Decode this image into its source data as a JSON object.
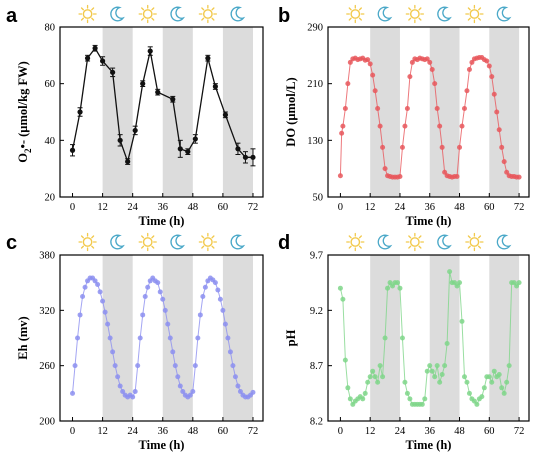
{
  "chart_data": [
    {
      "type": "line",
      "panel_label": "a",
      "xlabel": "Time (h)",
      "ylabel": "O2•- (µmol/kg FW)",
      "ylabel_main": "O",
      "ylabel_sub": "2",
      "ylabel_rest": "•- (µmol/kg FW)",
      "xlim": [
        -5,
        76
      ],
      "ylim": [
        20,
        80
      ],
      "xticks": [
        "0",
        "12",
        "24",
        "36",
        "48",
        "60",
        "72"
      ],
      "yticks": [
        "20",
        "40",
        "60",
        "80"
      ],
      "error_bars": true,
      "color": "#111111",
      "series": [
        {
          "x": [
            0,
            3,
            6,
            9,
            12,
            16,
            19,
            22,
            25,
            28,
            31,
            34,
            40,
            43,
            46,
            49,
            54,
            57,
            61,
            66,
            69,
            72
          ],
          "y": [
            36.5,
            50,
            69,
            72.5,
            68,
            64,
            40,
            32.5,
            43.5,
            60,
            71.5,
            57,
            54.5,
            37,
            36,
            40.5,
            69,
            59,
            49,
            37,
            34,
            34
          ],
          "err": [
            2,
            1.5,
            1,
            1,
            1.5,
            1.5,
            2,
            1,
            1.5,
            1,
            1.5,
            1,
            1,
            3,
            1,
            1.5,
            1,
            1,
            1,
            2,
            2,
            3
          ]
        }
      ]
    },
    {
      "type": "line",
      "panel_label": "b",
      "xlabel": "Time (h)",
      "ylabel": "DO (µmol/L)",
      "xlim": [
        -5,
        76
      ],
      "ylim": [
        50,
        290
      ],
      "xticks": [
        "0",
        "12",
        "24",
        "36",
        "48",
        "60",
        "72"
      ],
      "yticks": [
        "50",
        "130",
        "210",
        "290"
      ],
      "color": "#e8575c",
      "series": [
        {
          "x": [
            0,
            0.5,
            1,
            2,
            3,
            4,
            5,
            6,
            7,
            8,
            9,
            10,
            11,
            12,
            13,
            14,
            15,
            16,
            17,
            18,
            19,
            20,
            21,
            22,
            23,
            24,
            25,
            26,
            27,
            28,
            29,
            30,
            31,
            32,
            33,
            34,
            35,
            36,
            37,
            38,
            39,
            40,
            41,
            42,
            43,
            44,
            45,
            46,
            47,
            48,
            49,
            50,
            51,
            52,
            53,
            54,
            55,
            56,
            57,
            58,
            59,
            60,
            61,
            62,
            63,
            64,
            65,
            66,
            67,
            68,
            69,
            70,
            71,
            72
          ],
          "y": [
            80,
            140,
            150,
            175,
            210,
            240,
            245,
            246,
            244,
            245,
            246,
            243,
            244,
            238,
            222,
            200,
            175,
            150,
            120,
            90,
            80,
            79,
            78,
            78,
            78,
            79,
            120,
            150,
            175,
            220,
            240,
            245,
            244,
            246,
            245,
            244,
            245,
            240,
            230,
            210,
            175,
            150,
            120,
            85,
            80,
            79,
            78,
            79,
            79,
            120,
            150,
            175,
            200,
            230,
            240,
            245,
            246,
            247,
            247,
            244,
            242,
            235,
            220,
            195,
            170,
            145,
            120,
            100,
            85,
            80,
            79,
            79,
            78,
            78
          ]
        }
      ]
    },
    {
      "type": "line",
      "panel_label": "c",
      "xlabel": "Time (h)",
      "ylabel": "Eh (mv)",
      "xlim": [
        -5,
        76
      ],
      "ylim": [
        200,
        380
      ],
      "xticks": [
        "0",
        "12",
        "24",
        "36",
        "48",
        "60",
        "72"
      ],
      "yticks": [
        "200",
        "260",
        "320",
        "380"
      ],
      "color": "#8c8ff0",
      "series": [
        {
          "x": [
            0,
            1,
            2,
            3,
            4,
            5,
            6,
            7,
            8,
            9,
            10,
            11,
            12,
            13,
            14,
            15,
            16,
            17,
            18,
            19,
            20,
            21,
            22,
            23,
            24,
            25,
            26,
            27,
            28,
            29,
            30,
            31,
            32,
            33,
            34,
            35,
            36,
            37,
            38,
            39,
            40,
            41,
            42,
            43,
            44,
            45,
            46,
            47,
            48,
            49,
            50,
            51,
            52,
            53,
            54,
            55,
            56,
            57,
            58,
            59,
            60,
            61,
            62,
            63,
            64,
            65,
            66,
            67,
            68,
            69,
            70,
            71,
            72
          ],
          "y": [
            230,
            260,
            290,
            315,
            335,
            345,
            352,
            355,
            355,
            352,
            348,
            340,
            330,
            318,
            305,
            290,
            275,
            260,
            248,
            238,
            232,
            228,
            226,
            228,
            226,
            232,
            260,
            290,
            315,
            335,
            345,
            352,
            355,
            352,
            350,
            340,
            332,
            320,
            305,
            290,
            275,
            260,
            248,
            238,
            232,
            228,
            226,
            228,
            232,
            260,
            290,
            315,
            335,
            345,
            352,
            355,
            353,
            350,
            342,
            332,
            320,
            305,
            290,
            275,
            260,
            248,
            238,
            232,
            228,
            226,
            226,
            228,
            231
          ]
        }
      ]
    },
    {
      "type": "line",
      "panel_label": "d",
      "xlabel": "Time (h)",
      "ylabel": "pH",
      "xlim": [
        -5,
        76
      ],
      "ylim": [
        8.2,
        9.7
      ],
      "xticks": [
        "0",
        "12",
        "24",
        "36",
        "48",
        "60",
        "72"
      ],
      "yticks": [
        "8.2",
        "8.7",
        "9.2",
        "9.7"
      ],
      "color": "#7fd68a",
      "series": [
        {
          "x": [
            0,
            1,
            2,
            3,
            4,
            5,
            6,
            7,
            8,
            9,
            10,
            11,
            12,
            13,
            14,
            15,
            16,
            17,
            18,
            19,
            20,
            21,
            22,
            23,
            24,
            25,
            26,
            27,
            28,
            29,
            30,
            31,
            32,
            33,
            34,
            35,
            36,
            37,
            38,
            39,
            40,
            41,
            42,
            43,
            44,
            45,
            46,
            47,
            48,
            49,
            50,
            51,
            52,
            53,
            54,
            55,
            56,
            57,
            58,
            59,
            60,
            61,
            62,
            63,
            64,
            65,
            66,
            67,
            68,
            69,
            70,
            71,
            72
          ],
          "y": [
            9.4,
            9.3,
            8.75,
            8.5,
            8.4,
            8.35,
            8.38,
            8.4,
            8.42,
            8.4,
            8.45,
            8.55,
            8.6,
            8.65,
            8.6,
            8.55,
            8.7,
            8.6,
            8.95,
            9.4,
            9.45,
            9.42,
            9.45,
            9.45,
            9.4,
            8.95,
            8.55,
            8.45,
            8.4,
            8.35,
            8.35,
            8.35,
            8.35,
            8.35,
            8.4,
            8.65,
            8.7,
            8.65,
            8.6,
            8.7,
            8.55,
            8.62,
            8.7,
            8.9,
            9.55,
            9.45,
            9.45,
            9.42,
            9.45,
            9.1,
            8.6,
            8.55,
            8.45,
            8.4,
            8.38,
            8.35,
            8.4,
            8.42,
            8.5,
            8.6,
            8.6,
            8.55,
            8.65,
            8.6,
            8.62,
            8.5,
            8.45,
            8.55,
            8.7,
            9.45,
            9.45,
            9.42,
            9.45
          ]
        }
      ]
    }
  ],
  "phases": [
    "day",
    "night",
    "day",
    "night",
    "day",
    "night"
  ],
  "phase_icons": {
    "day": "sun-icon",
    "night": "moon-icon"
  },
  "colors": {
    "shade": "#dcdcdc",
    "sun": "#f2c94c",
    "moon": "#4aa8c8"
  }
}
